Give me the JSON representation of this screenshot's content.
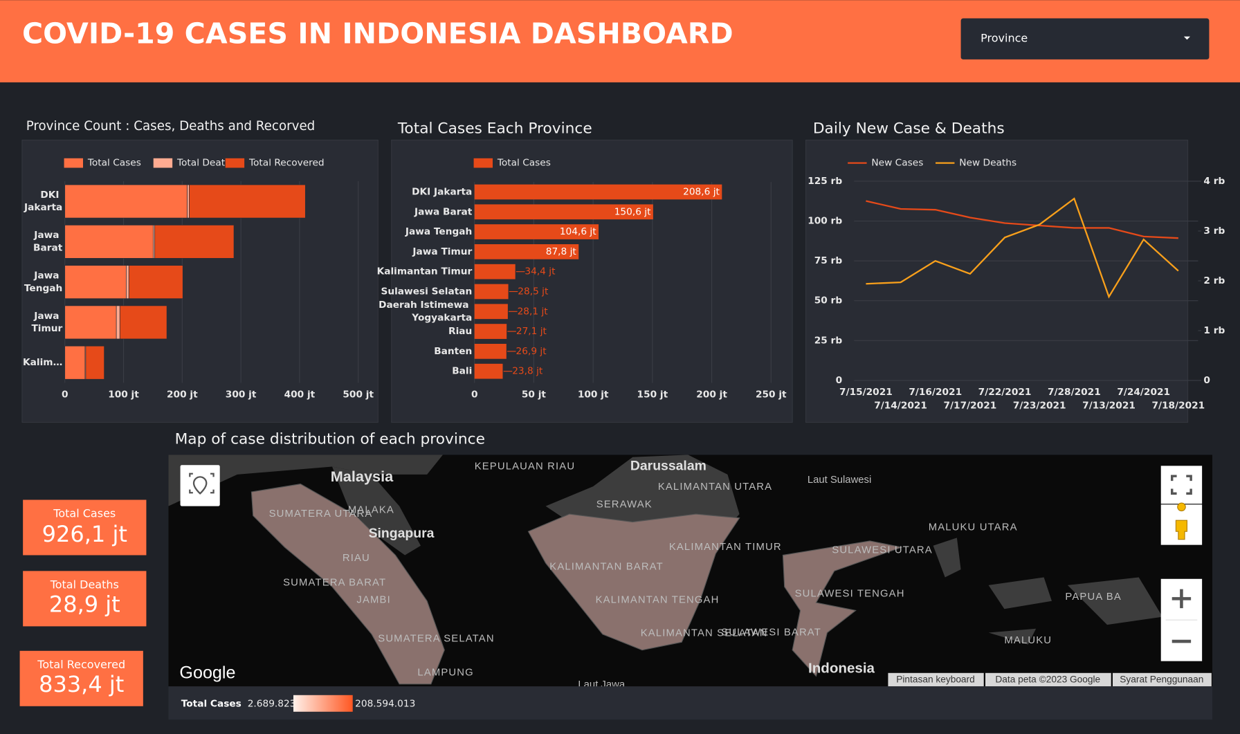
{
  "header": {
    "title": "COVID-19 CASES IN INDONESIA DASHBOARD"
  },
  "filter": {
    "label": "Province"
  },
  "chart_data": [
    {
      "type": "stacked-hbar",
      "title": "Province Count : Cases, Deaths and Recorved",
      "categories": [
        "DKI Jakarta",
        "Jawa Barat",
        "Jawa Tengah",
        "Jawa Timur",
        "Kalim…"
      ],
      "series": [
        {
          "name": "Total Cases",
          "color": "#ff7043",
          "values": [
            208.6,
            150.6,
            104.6,
            87.8,
            34.4
          ]
        },
        {
          "name": "Total Deaths",
          "color": "#ffab91",
          "values": [
            3.3,
            2.5,
            4.5,
            6.0,
            1.2
          ]
        },
        {
          "name": "Total Recovered",
          "color": "#e64a19",
          "values": [
            198.0,
            135.0,
            92.0,
            80.0,
            31.5
          ]
        }
      ],
      "xlim": [
        0,
        500
      ],
      "xticks": [
        0,
        {
          "value": 100,
          "label": "100 jt"
        },
        {
          "value": 200,
          "label": "200 jt"
        },
        {
          "value": 300,
          "label": "300 jt"
        },
        {
          "value": 400,
          "label": "400 jt"
        },
        {
          "value": 500,
          "label": "500 jt"
        }
      ],
      "grid": true
    },
    {
      "type": "hbar",
      "title": "Total Cases Each Province",
      "categories": [
        "DKI Jakarta",
        "Jawa Barat",
        "Jawa Tengah",
        "Jawa Timur",
        "Kalimantan Timur",
        "Sulawesi Selatan",
        "Daerah Istimewa Yogyakarta",
        "Riau",
        "Banten",
        "Bali"
      ],
      "series": [
        {
          "name": "Total Cases",
          "color": "#e64a19",
          "values": [
            208.6,
            150.6,
            104.6,
            87.8,
            34.4,
            28.5,
            28.1,
            27.1,
            26.9,
            23.8
          ],
          "value_labels": [
            "208,6 jt",
            "150,6 jt",
            "104,6 jt",
            "87,8 jt",
            "34,4 jt",
            "28,5 jt",
            "28,1 jt",
            "27,1 jt",
            "26,9 jt",
            "23,8 jt"
          ]
        }
      ],
      "xlim": [
        0,
        260
      ],
      "xticks": [
        0,
        {
          "value": 50,
          "label": "50 jt"
        },
        {
          "value": 100,
          "label": "100 jt"
        },
        {
          "value": 150,
          "label": "150 jt"
        },
        {
          "value": 200,
          "label": "200 jt"
        },
        {
          "value": 250,
          "label": "250 jt"
        }
      ],
      "grid": true
    },
    {
      "type": "line",
      "title": "Daily New Case & Deaths",
      "x": [
        "7/15/2021",
        "7/14/2021",
        "7/16/2021",
        "7/17/2021",
        "7/22/2021",
        "7/23/2021",
        "7/28/2021",
        "7/13/2021",
        "7/24/2021",
        "7/18/2021"
      ],
      "series": [
        {
          "name": "New Cases",
          "color": "#e64a19",
          "values": [
            112.6,
            107.6,
            107.1,
            102.2,
            98.7,
            97.2,
            95.7,
            95.7,
            90.3,
            89.3
          ]
        },
        {
          "name": "New Deaths",
          "color": "#f9a01b",
          "axis": "y2",
          "values": [
            1.94,
            1.97,
            2.4,
            2.14,
            2.87,
            3.13,
            3.65,
            1.68,
            2.83,
            2.2
          ]
        }
      ],
      "ylim": [
        0,
        125
      ],
      "yticks": [
        0,
        {
          "value": 25,
          "label": "25 rb"
        },
        {
          "value": 50,
          "label": "50 rb"
        },
        {
          "value": 75,
          "label": "75 rb"
        },
        {
          "value": 100,
          "label": "100 rb"
        },
        {
          "value": 125,
          "label": "125 rb"
        }
      ],
      "y2lim": [
        0,
        4
      ],
      "y2ticks": [
        0,
        {
          "value": 1,
          "label": "1 rb"
        },
        {
          "value": 2,
          "label": "2 rb"
        },
        {
          "value": 3,
          "label": "3 rb"
        },
        {
          "value": 4,
          "label": "4 rb"
        }
      ],
      "grid": true
    }
  ],
  "scorecards": [
    {
      "label": "Total Cases",
      "value": "926,1 jt"
    },
    {
      "label": "Total Deaths",
      "value": "28,9 jt"
    },
    {
      "label": "Total Recovered",
      "value": "833,4 jt"
    }
  ],
  "map": {
    "title": "Map of case distribution of each province",
    "labels": [
      "Malaysia",
      "Singapura",
      "KEPULAUAN RIAU",
      "Darussalam",
      "KALIMANTAN UTARA",
      "SERAWAK",
      "Laut Sulawesi",
      "SUMATERA UTARA",
      "MALAKA",
      "RIAU",
      "SUMATERA BARAT",
      "JAMBI",
      "SUMATERA SELATAN",
      "LAMPUNG",
      "KALIMANTAN BARAT",
      "KALIMANTAN TENGAH",
      "KALIMANTAN TIMUR",
      "KALIMANTAN SELATAN",
      "SULAWESI UTARA",
      "SULAWESI TENGAH",
      "SULAWESI BARAT",
      "MALUKU UTARA",
      "PAPUA BA",
      "MALUKU",
      "Indonesia",
      "Laut Jawa"
    ],
    "brand": "Google",
    "attribution": [
      "Pintasan keyboard",
      "Data peta ©2023 Google",
      "Syarat Penggunaan"
    ],
    "legend": {
      "label": "Total Cases",
      "min": "2.689.823",
      "max": "208.594.013"
    }
  }
}
